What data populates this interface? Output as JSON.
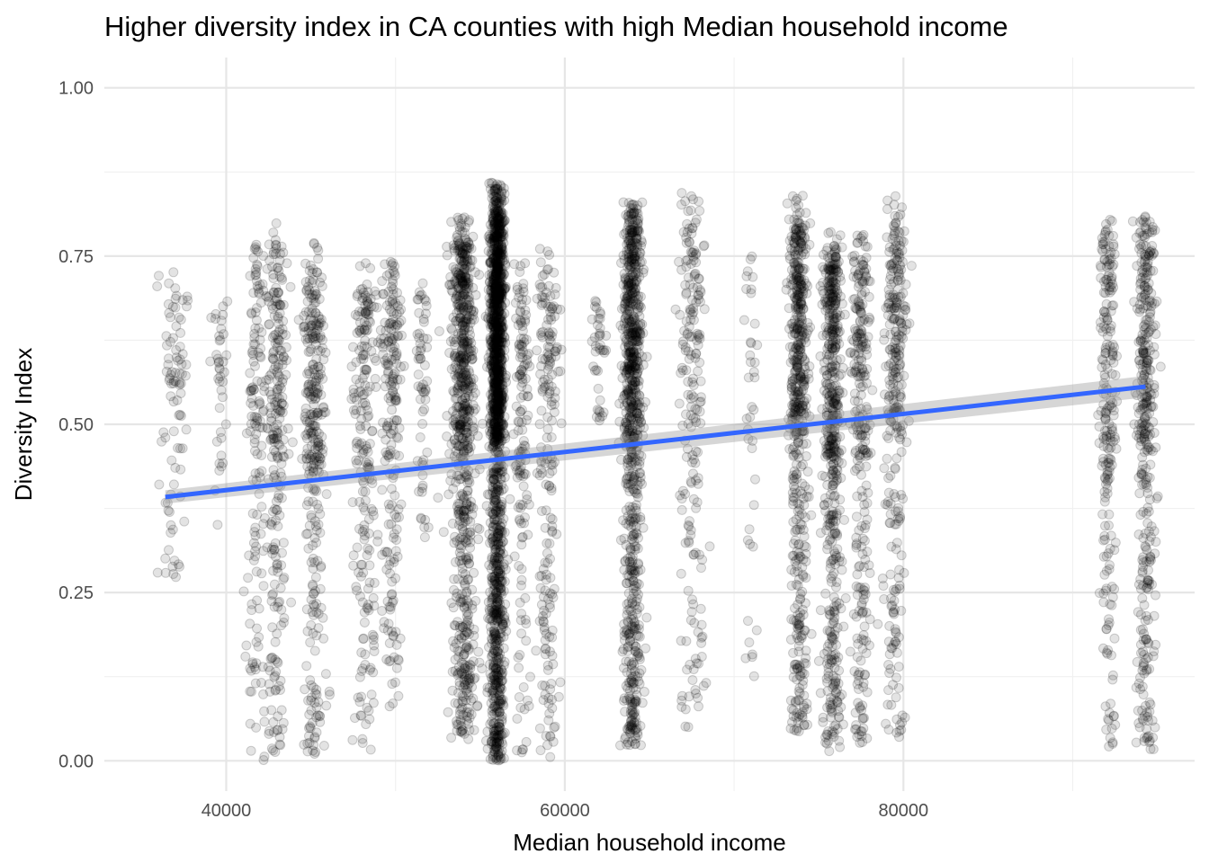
{
  "chart_data": {
    "type": "scatter",
    "title": "Higher diversity index in CA counties with high Median household income",
    "xlabel": "Median household income",
    "ylabel": "Diversity Index",
    "xlim": [
      32800,
      97200
    ],
    "ylim": [
      -0.045,
      1.045
    ],
    "x_major_ticks": [
      40000,
      60000,
      80000
    ],
    "x_minor_ticks": [
      50000,
      70000,
      90000
    ],
    "y_major_ticks": [
      0.0,
      0.25,
      0.5,
      0.75,
      1.0
    ],
    "y_tick_labels": [
      "0.00",
      "0.25",
      "0.50",
      "0.75",
      "1.00"
    ],
    "y_minor_ticks": [
      0.125,
      0.375,
      0.625,
      0.875
    ],
    "grid": true,
    "point_color": "#000000",
    "point_alpha": 0.12,
    "trend_line": {
      "method": "linear",
      "color": "#3366FF",
      "x": [
        36400,
        94300
      ],
      "y": [
        0.392,
        0.556
      ],
      "ci_band": 0.01
    },
    "county_clusters": [
      {
        "income": 36900,
        "count": 90,
        "y_range": [
          0.27,
          0.73
        ],
        "spread": 900
      },
      {
        "income": 39600,
        "count": 40,
        "y_range": [
          0.35,
          0.71
        ],
        "spread": 500
      },
      {
        "income": 41800,
        "count": 140,
        "y_range": [
          0.0,
          0.77
        ],
        "spread": 600
      },
      {
        "income": 43000,
        "count": 260,
        "y_range": [
          0.0,
          0.81
        ],
        "spread": 700
      },
      {
        "income": 45200,
        "count": 320,
        "y_range": [
          0.01,
          0.77
        ],
        "spread": 700
      },
      {
        "income": 48200,
        "count": 220,
        "y_range": [
          0.01,
          0.74
        ],
        "spread": 800
      },
      {
        "income": 49800,
        "count": 200,
        "y_range": [
          0.07,
          0.76
        ],
        "spread": 600
      },
      {
        "income": 51600,
        "count": 60,
        "y_range": [
          0.31,
          0.72
        ],
        "spread": 400
      },
      {
        "income": 54000,
        "count": 750,
        "y_range": [
          0.03,
          0.81
        ],
        "spread": 800
      },
      {
        "income": 56000,
        "count": 1700,
        "y_range": [
          0.0,
          0.86
        ],
        "spread": 450
      },
      {
        "income": 57500,
        "count": 150,
        "y_range": [
          0.0,
          0.74
        ],
        "spread": 500
      },
      {
        "income": 59000,
        "count": 200,
        "y_range": [
          0.0,
          0.77
        ],
        "spread": 700
      },
      {
        "income": 62000,
        "count": 40,
        "y_range": [
          0.5,
          0.69
        ],
        "spread": 500
      },
      {
        "income": 64000,
        "count": 850,
        "y_range": [
          0.02,
          0.83
        ],
        "spread": 600
      },
      {
        "income": 67500,
        "count": 200,
        "y_range": [
          0.05,
          0.85
        ],
        "spread": 800
      },
      {
        "income": 71000,
        "count": 40,
        "y_range": [
          0.12,
          0.76
        ],
        "spread": 400
      },
      {
        "income": 73800,
        "count": 550,
        "y_range": [
          0.04,
          0.84
        ],
        "spread": 600
      },
      {
        "income": 75800,
        "count": 550,
        "y_range": [
          0.01,
          0.79
        ],
        "spread": 600
      },
      {
        "income": 77500,
        "count": 280,
        "y_range": [
          0.02,
          0.79
        ],
        "spread": 600
      },
      {
        "income": 79500,
        "count": 300,
        "y_range": [
          0.03,
          0.84
        ],
        "spread": 700
      },
      {
        "income": 92100,
        "count": 230,
        "y_range": [
          0.02,
          0.82
        ],
        "spread": 500
      },
      {
        "income": 94300,
        "count": 380,
        "y_range": [
          0.01,
          0.81
        ],
        "spread": 600
      }
    ]
  }
}
